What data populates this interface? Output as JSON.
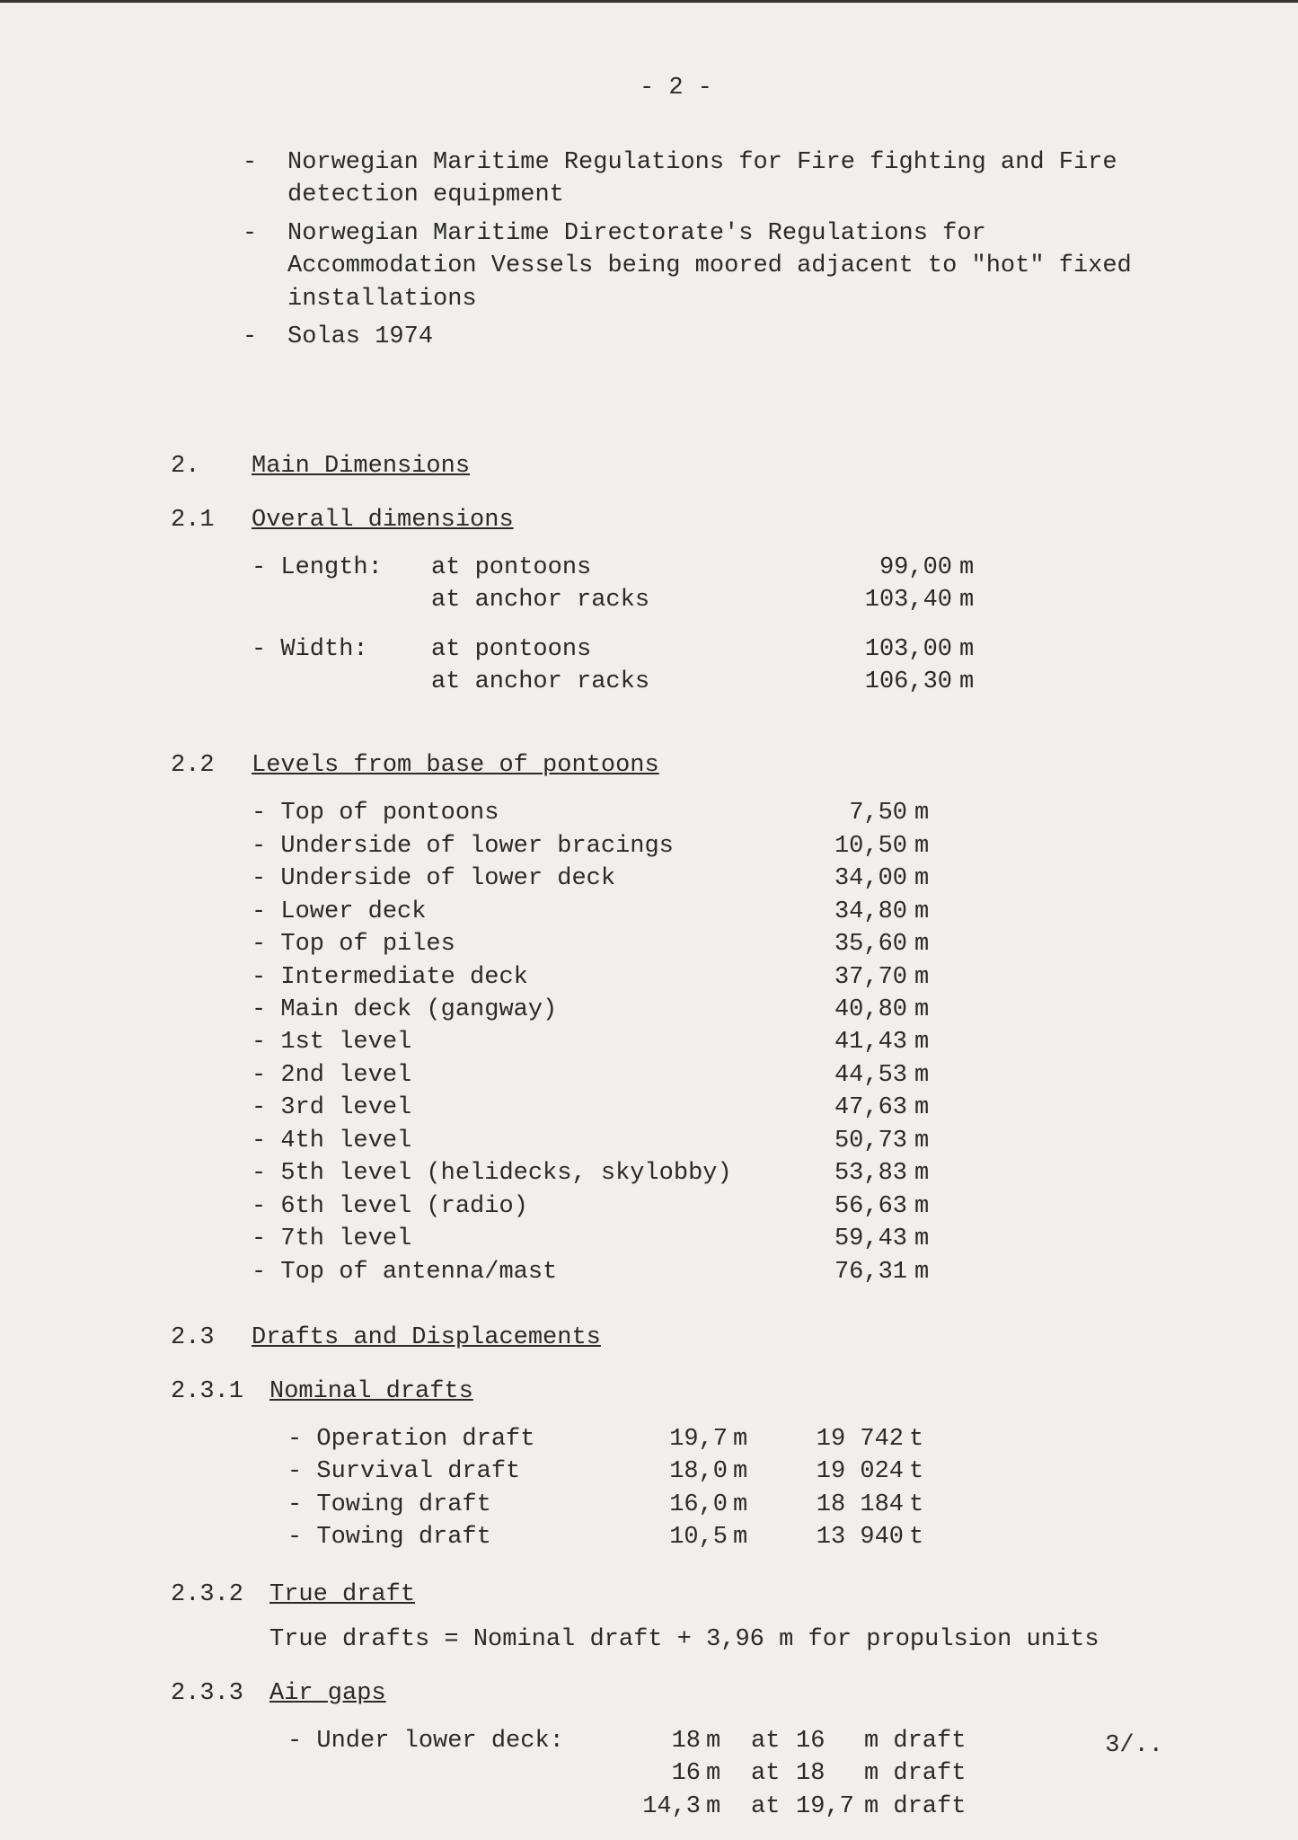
{
  "pageNumber": "- 2 -",
  "regulations": [
    "Norwegian Maritime Regulations for Fire fighting and Fire detection equipment",
    "Norwegian Maritime Directorate's Regulations for Accommodation Vessels being moored adjacent to \"hot\" fixed installations",
    "Solas 1974"
  ],
  "sec2": {
    "num": "2.",
    "title": "Main Dimensions"
  },
  "sec21": {
    "num": "2.1",
    "title": "Overall dimensions"
  },
  "overall": [
    {
      "label": "- Length:",
      "desc": "at pontoons",
      "val": "99,00",
      "unit": "m"
    },
    {
      "label": "",
      "desc": "at anchor racks",
      "val": "103,40",
      "unit": "m"
    },
    {
      "label": "- Width:",
      "desc": "at pontoons",
      "val": "103,00",
      "unit": "m"
    },
    {
      "label": "",
      "desc": "at anchor racks",
      "val": "106,30",
      "unit": "m"
    }
  ],
  "sec22": {
    "num": "2.2",
    "title": "Levels from base of pontoons"
  },
  "levels": [
    {
      "label": "- Top of pontoons",
      "val": "7,50",
      "unit": "m"
    },
    {
      "label": "- Underside of lower bracings",
      "val": "10,50",
      "unit": "m"
    },
    {
      "label": "- Underside of lower deck",
      "val": "34,00",
      "unit": "m"
    },
    {
      "label": "- Lower deck",
      "val": "34,80",
      "unit": "m"
    },
    {
      "label": "- Top of piles",
      "val": "35,60",
      "unit": "m"
    },
    {
      "label": "- Intermediate deck",
      "val": "37,70",
      "unit": "m"
    },
    {
      "label": "- Main deck (gangway)",
      "val": "40,80",
      "unit": "m"
    },
    {
      "label": "- 1st level",
      "val": "41,43",
      "unit": "m"
    },
    {
      "label": "- 2nd level",
      "val": "44,53",
      "unit": "m"
    },
    {
      "label": "- 3rd level",
      "val": "47,63",
      "unit": "m"
    },
    {
      "label": "- 4th level",
      "val": "50,73",
      "unit": "m"
    },
    {
      "label": "- 5th level (helidecks, skylobby)",
      "val": "53,83",
      "unit": "m"
    },
    {
      "label": "- 6th level (radio)",
      "val": "56,63",
      "unit": "m"
    },
    {
      "label": "- 7th level",
      "val": "59,43",
      "unit": "m"
    },
    {
      "label": "- Top of antenna/mast",
      "val": "76,31",
      "unit": "m"
    }
  ],
  "sec23": {
    "num": "2.3",
    "title": "Drafts and Displacements"
  },
  "sec231": {
    "num": "2.3.1",
    "title": "Nominal drafts"
  },
  "drafts": [
    {
      "label": "- Operation draft",
      "m": "19,7",
      "mu": "m",
      "t": "19 742",
      "tu": "t"
    },
    {
      "label": "- Survival draft",
      "m": "18,0",
      "mu": "m",
      "t": "19 024",
      "tu": "t"
    },
    {
      "label": "- Towing draft",
      "m": "16,0",
      "mu": "m",
      "t": "18 184",
      "tu": "t"
    },
    {
      "label": "- Towing draft",
      "m": "10,5",
      "mu": "m",
      "t": "13 940",
      "tu": "t"
    }
  ],
  "sec232": {
    "num": "2.3.2",
    "title": "True draft"
  },
  "trueDraftText": "True drafts = Nominal draft + 3,96 m for propulsion units",
  "sec233": {
    "num": "2.3.3",
    "title": "Air gaps"
  },
  "airLabel": "- Under lower deck:",
  "airgaps": [
    {
      "v1": "18",
      "u1": "m",
      "at": "at",
      "v2": "16",
      "rest": "m draft"
    },
    {
      "v1": "16",
      "u1": "m",
      "at": "at",
      "v2": "18",
      "rest": "m draft"
    },
    {
      "v1": "14,3",
      "u1": "m",
      "at": "at",
      "v2": "19,7",
      "rest": "m draft"
    }
  ],
  "footer": "3/.."
}
